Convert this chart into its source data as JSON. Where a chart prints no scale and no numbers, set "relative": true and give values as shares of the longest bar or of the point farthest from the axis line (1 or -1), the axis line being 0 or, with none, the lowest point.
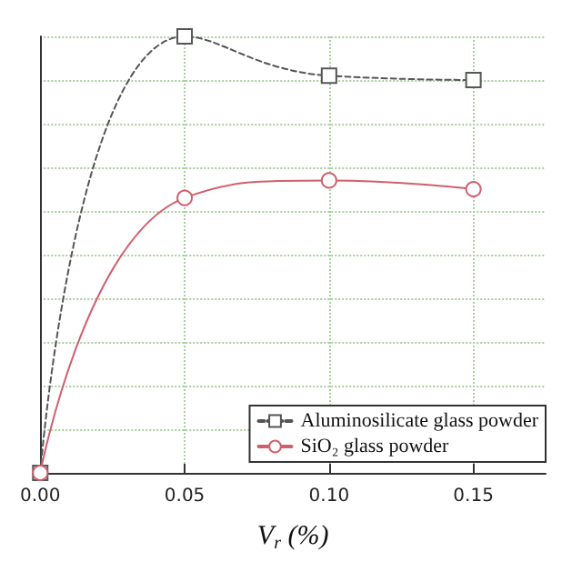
{
  "chart_data": {
    "type": "line",
    "relative": true,
    "xlabel": "V$_{r}$ (%)",
    "x": [
      0,
      0.05,
      0.1,
      0.15
    ],
    "xlim": [
      0,
      0.175
    ],
    "xticks": [
      {
        "value": 0,
        "label": "0.00"
      },
      {
        "value": 0.05,
        "label": "0.05"
      },
      {
        "value": 0.1,
        "label": "0.10"
      },
      {
        "value": 0.15,
        "label": "0.15"
      }
    ],
    "grid": true,
    "legend": "bottom right",
    "series": [
      {
        "name": "Aluminosilicate glass powder",
        "color": "#555555",
        "marker": "square",
        "line_style": "dashed",
        "values": [
          0,
          1,
          0.91,
          0.9
        ]
      },
      {
        "name": "SiO₂ glass powder",
        "color": "#d0606e",
        "marker": "circle",
        "line_style": "solid",
        "values": [
          0,
          0.63,
          0.67,
          0.65
        ]
      }
    ]
  }
}
